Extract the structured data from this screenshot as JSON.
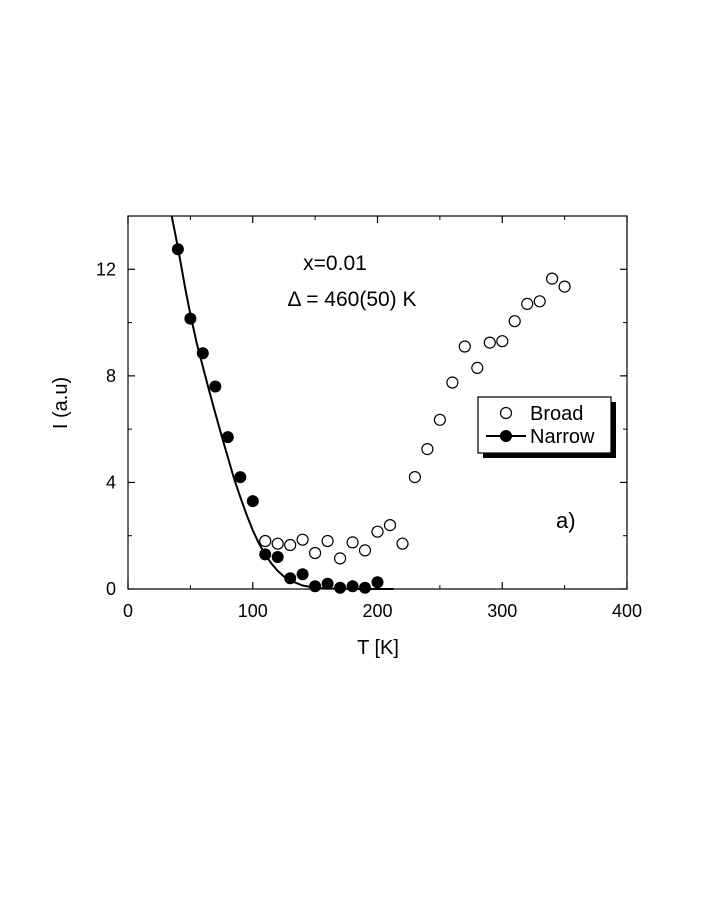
{
  "chart_data": {
    "type": "scatter",
    "xlabel": "T [K]",
    "ylabel": "I (a.u)",
    "xlim": [
      0,
      400
    ],
    "ylim": [
      0,
      14
    ],
    "x_ticks": [
      0,
      100,
      200,
      300,
      400
    ],
    "y_ticks": [
      0,
      4,
      8,
      12
    ],
    "x_tick_labels": [
      "0",
      "100",
      "200",
      "300",
      "400"
    ],
    "y_tick_labels": [
      "0",
      "4",
      "8",
      "12"
    ],
    "grid": false,
    "legend_position": "middle-right",
    "annotations": {
      "composition": "x=0.01",
      "gap": "Δ = 460(50) K",
      "panel": "a)"
    },
    "series": [
      {
        "name": "Broad",
        "marker": "open-circle",
        "color": "#000000",
        "x": [
          110,
          120,
          130,
          140,
          150,
          160,
          170,
          180,
          190,
          200,
          210,
          220,
          230,
          240,
          250,
          260,
          270,
          280,
          290,
          300,
          310,
          320,
          330,
          340,
          350
        ],
        "y": [
          1.8,
          1.7,
          1.65,
          1.85,
          1.35,
          1.8,
          1.15,
          1.75,
          1.45,
          2.15,
          2.4,
          1.7,
          4.2,
          5.25,
          6.35,
          7.75,
          9.1,
          8.3,
          9.25,
          9.3,
          10.05,
          10.7,
          10.8,
          11.65,
          11.35
        ],
        "line": false
      },
      {
        "name": "Narrow",
        "marker": "filled-circle",
        "color": "#000000",
        "x": [
          40,
          50,
          60,
          70,
          80,
          90,
          100,
          110,
          120,
          130,
          140,
          150,
          160,
          170,
          180,
          190,
          200
        ],
        "y": [
          12.75,
          10.15,
          8.85,
          7.6,
          5.7,
          4.2,
          3.3,
          1.3,
          1.2,
          0.4,
          0.55,
          0.1,
          0.2,
          0.05,
          0.1,
          0.05,
          0.25
        ],
        "line": true
      }
    ],
    "fit_curve": {
      "series": "Narrow",
      "x": [
        35,
        38,
        42,
        46,
        50,
        55,
        60,
        65,
        70,
        75,
        80,
        85,
        90,
        95,
        100,
        105,
        110,
        115,
        120,
        125,
        130,
        140,
        150,
        160,
        170,
        180,
        190,
        200,
        213
      ],
      "y": [
        14.0,
        13.3,
        12.3,
        11.25,
        10.3,
        9.25,
        8.35,
        7.45,
        6.6,
        5.75,
        4.95,
        4.15,
        3.45,
        2.8,
        2.2,
        1.7,
        1.3,
        0.95,
        0.68,
        0.47,
        0.32,
        0.13,
        0.05,
        0.02,
        0.01,
        0.0,
        0.0,
        0.0,
        0.0
      ]
    }
  }
}
